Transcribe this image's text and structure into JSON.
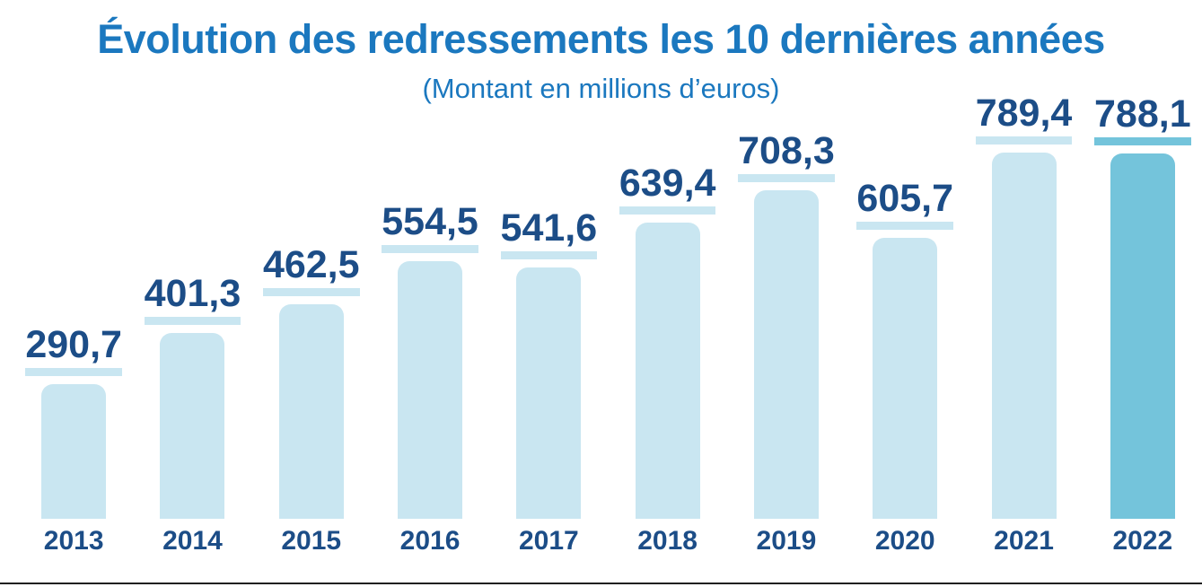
{
  "page": {
    "background": "#ffffff",
    "bottom_rule_color": "#1f1f1f"
  },
  "chart_data": {
    "type": "bar",
    "title": "Évolution des redressements les 10 dernières années",
    "subtitle": "(Montant en millions d’euros)",
    "categories": [
      "2013",
      "2014",
      "2015",
      "2016",
      "2017",
      "2018",
      "2019",
      "2020",
      "2021",
      "2022"
    ],
    "values": [
      290.7,
      401.3,
      462.5,
      554.5,
      541.6,
      639.4,
      708.3,
      605.7,
      789.4,
      788.1
    ],
    "value_labels": [
      "290,7",
      "401,3",
      "462,5",
      "554,5",
      "541,6",
      "639,4",
      "708,3",
      "605,7",
      "789,4",
      "788,1"
    ],
    "highlighted_category": "2022",
    "ylim": [
      0,
      800
    ],
    "grid": false,
    "legend": false,
    "layout_hints": {
      "value_labels_position": "above-bar-with-underline",
      "bar_corner": "rounded-top",
      "x_axis_position": "bottom"
    },
    "colors": {
      "title_text": "#1b78bf",
      "label_text": "#1c4d87",
      "axis_text": "#1c4d87",
      "bar": "#c9e6f1",
      "bar_highlight": "#74c4db",
      "underline": "#c9e6f1",
      "underline_highlight": "#74c4db"
    }
  }
}
